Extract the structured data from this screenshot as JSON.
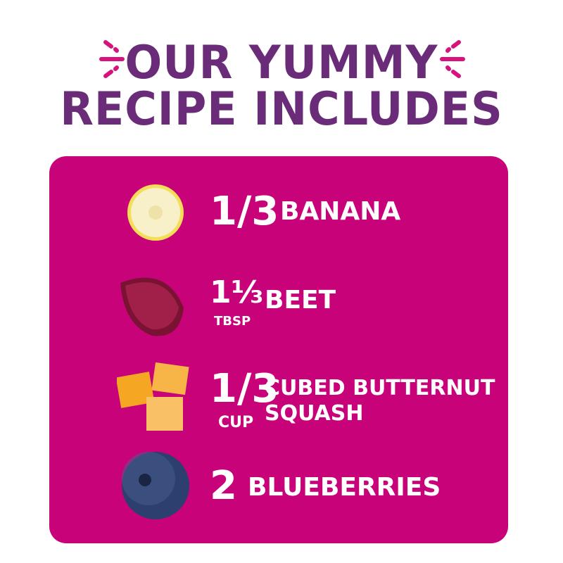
{
  "header": {
    "line1": "OUR YUMMY",
    "line2": "RECIPE INCLUDES"
  },
  "colors": {
    "title": "#6a2c78",
    "card": "#c8037a",
    "accent": "#d6127f",
    "text": "#ffffff"
  },
  "ingredients": [
    {
      "icon": "banana-slice-icon",
      "qty": "1/3",
      "unit": "",
      "name": "BANANA"
    },
    {
      "icon": "beet-icon",
      "qty": "1⅓",
      "unit": "TBSP",
      "name": "BEET"
    },
    {
      "icon": "butternut-squash-cubes-icon",
      "qty": "1/3",
      "unit": "CUP",
      "name_line1": "CUBED BUTTERNUT",
      "name_line2": "SQUASH"
    },
    {
      "icon": "blueberry-icon",
      "qty": "2",
      "unit": "",
      "name": "BLUEBERRIES"
    }
  ]
}
